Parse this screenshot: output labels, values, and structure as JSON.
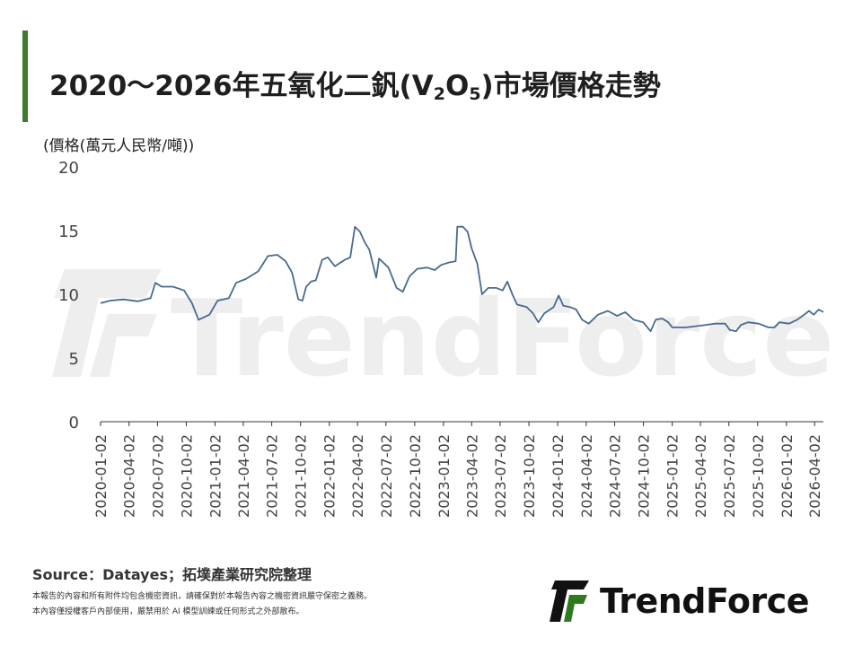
{
  "title_main": "2020～2026年五氧化二釩(V",
  "title_sub1": "2",
  "title_mid": "O",
  "title_sub2": "5",
  "title_end": ")市場價格走勢",
  "watermark": "TrendForce",
  "source": "Source：Datayes；拓墣產業研究院整理",
  "disclaimer_line1": "本報告的內容和所有附件均包含機密資訊，請確保對於本報告內容之機密資訊嚴守保密之義務。",
  "disclaimer_line2": "本內容僅授權客戶內部使用，嚴禁用於 AI 模型訓練或任何形式之外部散布。",
  "brand": {
    "name": "TrendForce",
    "colors": {
      "green": "#2f7a1f",
      "dark": "#111111"
    }
  },
  "colors": {
    "accent_bar": "#3d7a2a",
    "line": "#4a6a8f",
    "axis": "#333333",
    "watermark": "#eeeeee"
  },
  "chart_data": {
    "type": "line",
    "ylabel": "(價格(萬元人民幣/噸))",
    "ylim": [
      0,
      20
    ],
    "yticks": [
      0,
      5,
      10,
      15,
      20
    ],
    "xlim": [
      "2020-01-02",
      "2026-04-30"
    ],
    "xticks": [
      "2020-01-02",
      "2020-04-02",
      "2020-07-02",
      "2020-10-02",
      "2021-01-02",
      "2021-04-02",
      "2021-07-02",
      "2021-10-02",
      "2022-01-02",
      "2022-04-02",
      "2022-07-02",
      "2022-10-02",
      "2023-01-02",
      "2023-04-02",
      "2023-07-02",
      "2023-10-02",
      "2024-01-02",
      "2024-04-02",
      "2024-07-02",
      "2024-10-02",
      "2025-01-02",
      "2025-04-02",
      "2025-07-02",
      "2025-10-02",
      "2026-01-02",
      "2026-04-02"
    ],
    "grid": false,
    "series": [
      {
        "color": "#4a6a8f",
        "points": [
          [
            "2020-01-02",
            9.3
          ],
          [
            "2020-02-01",
            9.5
          ],
          [
            "2020-03-15",
            9.6
          ],
          [
            "2020-05-01",
            9.45
          ],
          [
            "2020-06-10",
            9.7
          ],
          [
            "2020-06-25",
            10.9
          ],
          [
            "2020-07-15",
            10.6
          ],
          [
            "2020-08-20",
            10.6
          ],
          [
            "2020-09-25",
            10.3
          ],
          [
            "2020-10-20",
            9.3
          ],
          [
            "2020-11-10",
            8.0
          ],
          [
            "2020-12-15",
            8.4
          ],
          [
            "2021-01-10",
            9.5
          ],
          [
            "2021-02-15",
            9.7
          ],
          [
            "2021-03-10",
            10.9
          ],
          [
            "2021-04-10",
            11.2
          ],
          [
            "2021-05-20",
            11.8
          ],
          [
            "2021-06-20",
            13.0
          ],
          [
            "2021-07-20",
            13.1
          ],
          [
            "2021-08-15",
            12.6
          ],
          [
            "2021-09-05",
            11.7
          ],
          [
            "2021-09-25",
            9.6
          ],
          [
            "2021-10-08",
            9.5
          ],
          [
            "2021-10-20",
            10.6
          ],
          [
            "2021-11-05",
            11.0
          ],
          [
            "2021-11-20",
            11.1
          ],
          [
            "2021-12-10",
            12.7
          ],
          [
            "2021-12-28",
            12.9
          ],
          [
            "2022-01-20",
            12.2
          ],
          [
            "2022-02-20",
            12.7
          ],
          [
            "2022-03-10",
            12.9
          ],
          [
            "2022-03-25",
            15.3
          ],
          [
            "2022-04-10",
            14.9
          ],
          [
            "2022-04-25",
            14.1
          ],
          [
            "2022-05-10",
            13.5
          ],
          [
            "2022-06-01",
            11.3
          ],
          [
            "2022-06-10",
            12.8
          ],
          [
            "2022-07-10",
            12.1
          ],
          [
            "2022-08-05",
            10.5
          ],
          [
            "2022-08-25",
            10.2
          ],
          [
            "2022-09-15",
            11.4
          ],
          [
            "2022-10-10",
            12.0
          ],
          [
            "2022-11-10",
            12.1
          ],
          [
            "2022-12-05",
            11.9
          ],
          [
            "2022-12-25",
            12.3
          ],
          [
            "2023-01-20",
            12.5
          ],
          [
            "2023-02-10",
            12.6
          ],
          [
            "2023-02-15",
            15.3
          ],
          [
            "2023-03-05",
            15.3
          ],
          [
            "2023-03-20",
            14.9
          ],
          [
            "2023-04-02",
            13.6
          ],
          [
            "2023-04-20",
            12.4
          ],
          [
            "2023-05-05",
            10.0
          ],
          [
            "2023-05-25",
            10.5
          ],
          [
            "2023-06-20",
            10.5
          ],
          [
            "2023-07-10",
            10.3
          ],
          [
            "2023-07-25",
            11.0
          ],
          [
            "2023-08-10",
            10.0
          ],
          [
            "2023-08-25",
            9.2
          ],
          [
            "2023-09-25",
            9.0
          ],
          [
            "2023-10-15",
            8.5
          ],
          [
            "2023-11-01",
            7.8
          ],
          [
            "2023-11-20",
            8.5
          ],
          [
            "2023-12-20",
            9.0
          ],
          [
            "2024-01-05",
            9.9
          ],
          [
            "2024-01-20",
            9.1
          ],
          [
            "2024-02-10",
            9.0
          ],
          [
            "2024-03-01",
            8.8
          ],
          [
            "2024-03-20",
            8.0
          ],
          [
            "2024-04-10",
            7.7
          ],
          [
            "2024-05-10",
            8.4
          ],
          [
            "2024-06-10",
            8.7
          ],
          [
            "2024-07-10",
            8.3
          ],
          [
            "2024-08-05",
            8.6
          ],
          [
            "2024-09-01",
            8.0
          ],
          [
            "2024-10-01",
            7.8
          ],
          [
            "2024-10-25",
            7.1
          ],
          [
            "2024-11-10",
            8.0
          ],
          [
            "2024-12-01",
            8.1
          ],
          [
            "2024-12-20",
            7.8
          ],
          [
            "2025-01-02",
            7.4
          ],
          [
            "2025-02-15",
            7.4
          ],
          [
            "2025-03-20",
            7.5
          ],
          [
            "2025-04-20",
            7.6
          ],
          [
            "2025-05-20",
            7.7
          ],
          [
            "2025-06-20",
            7.7
          ],
          [
            "2025-07-05",
            7.2
          ],
          [
            "2025-07-25",
            7.1
          ],
          [
            "2025-08-10",
            7.6
          ],
          [
            "2025-09-01",
            7.8
          ],
          [
            "2025-10-05",
            7.7
          ],
          [
            "2025-11-05",
            7.4
          ],
          [
            "2025-11-25",
            7.4
          ],
          [
            "2025-12-10",
            7.8
          ],
          [
            "2026-01-10",
            7.7
          ],
          [
            "2026-02-05",
            8.0
          ],
          [
            "2026-02-28",
            8.4
          ],
          [
            "2026-03-15",
            8.7
          ],
          [
            "2026-03-30",
            8.4
          ],
          [
            "2026-04-15",
            8.8
          ],
          [
            "2026-04-30",
            8.6
          ]
        ]
      }
    ]
  }
}
